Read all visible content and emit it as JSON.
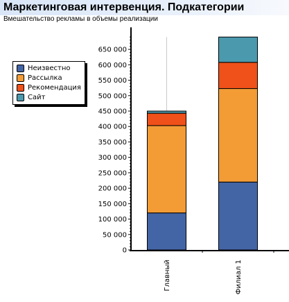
{
  "header": {
    "title": "Маркетинговая интервенция. Подкатегории",
    "subtitle": "Вмешательство рекламы в объемы реализации"
  },
  "legend": {
    "items": [
      {
        "label": "Неизвестно",
        "color": "#4465a5"
      },
      {
        "label": "Рассылка",
        "color": "#f39c36"
      },
      {
        "label": "Рекомендация",
        "color": "#f05019"
      },
      {
        "label": "Сайт",
        "color": "#4b99ad"
      }
    ]
  },
  "chart_data": {
    "type": "bar",
    "stacked": true,
    "categories": [
      "Главный",
      "Филиал 1"
    ],
    "series": [
      {
        "name": "Неизвестно",
        "values": [
          120000,
          220000
        ],
        "color": "#4465a5"
      },
      {
        "name": "Рассылка",
        "values": [
          283000,
          303000
        ],
        "color": "#f39c36"
      },
      {
        "name": "Рекомендация",
        "values": [
          40000,
          85000
        ],
        "color": "#f05019"
      },
      {
        "name": "Сайт",
        "values": [
          7000,
          82000
        ],
        "color": "#4b99ad"
      }
    ],
    "title": "Маркетинговая интервенция. Подкатегории",
    "subtitle": "Вмешательство рекламы в объемы реализации",
    "xlabel": "",
    "ylabel": "",
    "ylim": [
      0,
      690000
    ],
    "yticks": [
      0,
      50000,
      100000,
      150000,
      200000,
      250000,
      300000,
      350000,
      400000,
      450000,
      500000,
      550000,
      600000,
      650000
    ],
    "ytick_labels": [
      "0",
      "50 000",
      "100 000",
      "150 000",
      "200 000",
      "250 000",
      "300 000",
      "350 000",
      "400 000",
      "450 000",
      "500 000",
      "550 000",
      "600 000",
      "650 000"
    ],
    "grid": "vertical",
    "legend_position": "left"
  }
}
